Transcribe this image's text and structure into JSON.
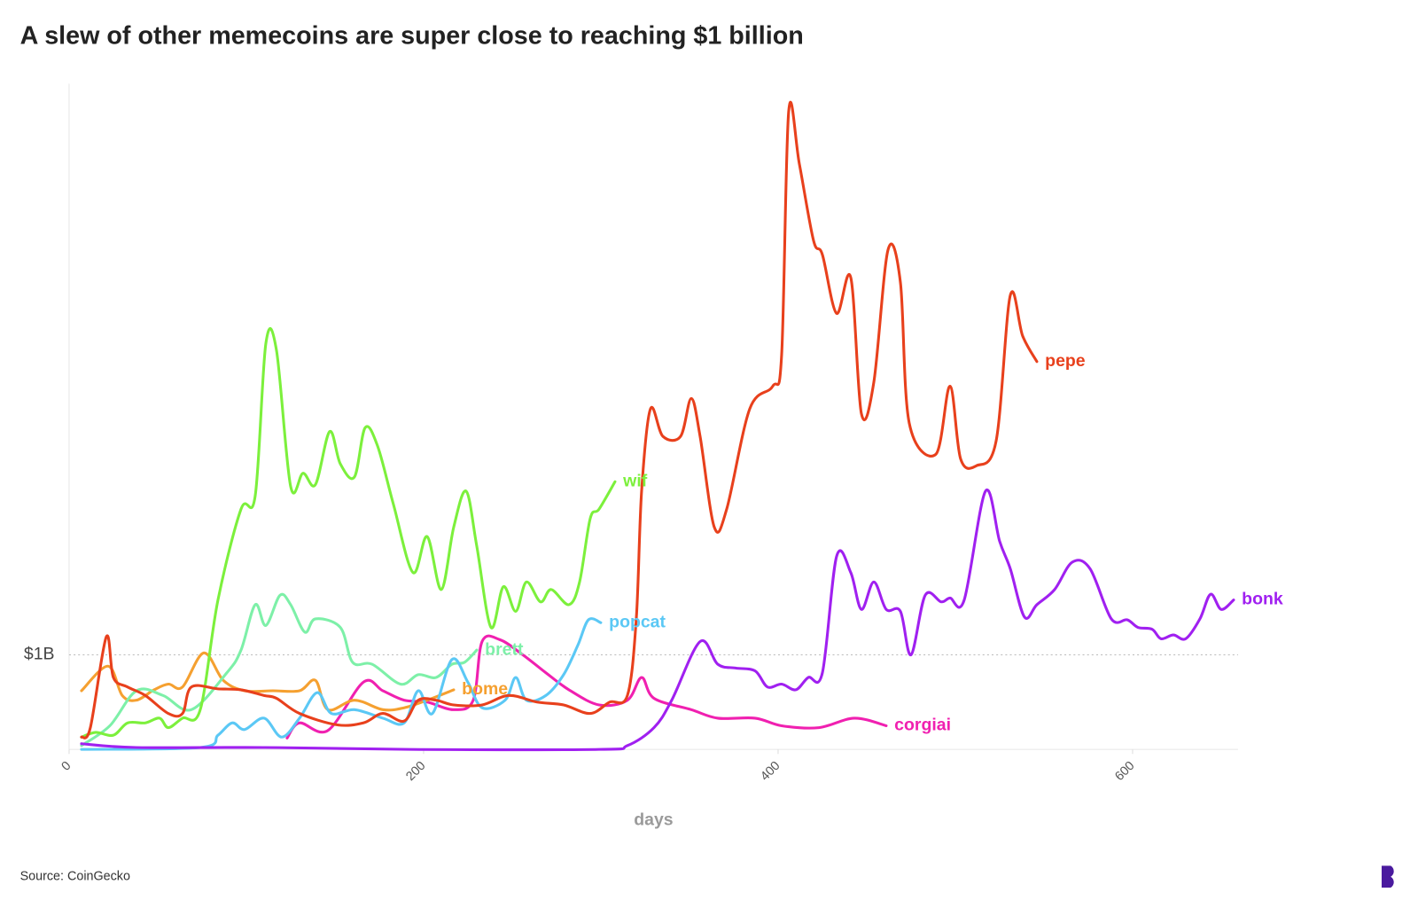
{
  "chart_data": {
    "type": "line",
    "title": "A slew of other memecoins are super close to reaching $1 billion",
    "x_label": "days",
    "source": "Source: CoinGecko",
    "xlim": [
      0,
      660
    ],
    "ylim": [
      0,
      7
    ],
    "xticks": [
      0,
      200,
      400,
      600
    ],
    "yticks": [
      {
        "value": 1,
        "label": "$1B"
      }
    ],
    "series": [
      {
        "name": "pepe",
        "color": "#e8401c",
        "x": [
          7,
          12,
          21,
          25,
          33,
          43,
          56,
          64,
          69,
          84,
          97,
          110,
          117,
          130,
          151,
          166,
          177,
          189,
          197,
          207,
          217,
          233,
          248,
          264,
          279,
          294,
          305,
          315,
          320,
          323,
          328,
          335,
          345,
          351,
          356,
          364,
          371,
          384,
          397,
          402,
          406,
          412,
          420,
          425,
          433,
          441,
          447,
          454,
          462,
          469,
          474,
          489,
          497,
          503,
          512,
          523,
          531,
          538,
          546
        ],
        "values": [
          0.13,
          0.23,
          1.19,
          0.76,
          0.66,
          0.57,
          0.38,
          0.38,
          0.66,
          0.64,
          0.63,
          0.57,
          0.54,
          0.38,
          0.26,
          0.28,
          0.38,
          0.3,
          0.52,
          0.52,
          0.47,
          0.47,
          0.57,
          0.5,
          0.47,
          0.38,
          0.5,
          0.57,
          1.38,
          2.73,
          3.6,
          3.31,
          3.31,
          3.71,
          3.31,
          2.35,
          2.54,
          3.6,
          3.84,
          4.17,
          6.75,
          6.19,
          5.38,
          5.23,
          4.61,
          4.99,
          3.55,
          3.88,
          5.28,
          4.94,
          3.45,
          3.12,
          3.84,
          3.07,
          3.0,
          3.26,
          4.8,
          4.37,
          4.1
        ]
      },
      {
        "name": "wif",
        "color": "#7cf03c",
        "x": [
          7,
          15,
          25,
          33,
          43,
          51,
          56,
          64,
          74,
          84,
          97,
          105,
          111,
          117,
          125,
          132,
          139,
          147,
          153,
          161,
          167,
          174,
          183,
          194,
          202,
          210,
          217,
          224,
          230,
          238,
          245,
          252,
          258,
          266,
          272,
          282,
          288,
          294,
          299,
          308
        ],
        "values": [
          0.13,
          0.18,
          0.15,
          0.28,
          0.28,
          0.33,
          0.23,
          0.33,
          0.42,
          1.58,
          2.54,
          2.68,
          4.29,
          4.22,
          2.78,
          2.92,
          2.8,
          3.36,
          3.02,
          2.88,
          3.4,
          3.21,
          2.59,
          1.87,
          2.25,
          1.69,
          2.35,
          2.73,
          2.15,
          1.29,
          1.72,
          1.46,
          1.77,
          1.56,
          1.69,
          1.53,
          1.77,
          2.44,
          2.54,
          2.83
        ]
      },
      {
        "name": "bonk",
        "color": "#a020f0",
        "x": [
          7,
          38,
          110,
          192,
          299,
          315,
          330,
          340,
          356,
          366,
          376,
          387,
          394,
          402,
          410,
          417,
          425,
          433,
          441,
          447,
          454,
          461,
          469,
          475,
          483,
          492,
          497,
          505,
          517,
          525,
          531,
          539,
          546,
          556,
          566,
          576,
          588,
          597,
          603,
          611,
          616,
          623,
          630,
          638,
          644,
          650,
          657
        ],
        "values": [
          0.06,
          0.02,
          0.02,
          0,
          0,
          0.04,
          0.23,
          0.52,
          1.14,
          0.9,
          0.86,
          0.83,
          0.66,
          0.69,
          0.63,
          0.76,
          0.81,
          2.04,
          1.87,
          1.48,
          1.77,
          1.48,
          1.46,
          1.0,
          1.63,
          1.56,
          1.6,
          1.58,
          2.73,
          2.2,
          1.91,
          1.4,
          1.53,
          1.69,
          1.98,
          1.91,
          1.38,
          1.37,
          1.29,
          1.27,
          1.17,
          1.21,
          1.17,
          1.38,
          1.64,
          1.48,
          1.58
        ]
      },
      {
        "name": "popcat",
        "color": "#5bc8f5",
        "x": [
          7,
          74,
          84,
          92,
          99,
          110,
          120,
          130,
          140,
          148,
          161,
          177,
          189,
          197,
          205,
          216,
          225,
          233,
          246,
          252,
          258,
          269,
          279,
          287,
          293,
          300
        ],
        "values": [
          0,
          0.02,
          0.15,
          0.28,
          0.21,
          0.33,
          0.13,
          0.33,
          0.6,
          0.38,
          0.42,
          0.33,
          0.28,
          0.62,
          0.38,
          0.95,
          0.71,
          0.44,
          0.52,
          0.76,
          0.52,
          0.57,
          0.79,
          1.1,
          1.37,
          1.34
        ]
      },
      {
        "name": "brett",
        "color": "#7df0a8",
        "x": [
          7,
          23,
          38,
          53,
          69,
          89,
          97,
          105,
          111,
          119,
          125,
          133,
          139,
          153,
          160,
          171,
          187,
          197,
          207,
          216,
          223,
          230
        ],
        "values": [
          0.04,
          0.25,
          0.62,
          0.57,
          0.42,
          0.81,
          1.05,
          1.53,
          1.31,
          1.63,
          1.53,
          1.24,
          1.38,
          1.29,
          0.92,
          0.9,
          0.69,
          0.79,
          0.76,
          0.9,
          0.92,
          1.05
        ]
      },
      {
        "name": "bome",
        "color": "#f5a030",
        "x": [
          7,
          22,
          30,
          38,
          48,
          56,
          64,
          76,
          87,
          99,
          115,
          130,
          139,
          146,
          161,
          177,
          189,
          202,
          217
        ],
        "values": [
          0.62,
          0.88,
          0.57,
          0.52,
          0.63,
          0.69,
          0.66,
          1.02,
          0.73,
          0.62,
          0.62,
          0.62,
          0.73,
          0.42,
          0.52,
          0.42,
          0.44,
          0.52,
          0.63
        ]
      },
      {
        "name": "corgiai",
        "color": "#f020b0",
        "x": [
          123,
          130,
          146,
          166,
          177,
          189,
          202,
          217,
          228,
          233,
          243,
          256,
          269,
          282,
          299,
          315,
          323,
          330,
          351,
          366,
          387,
          402,
          423,
          443,
          461
        ],
        "values": [
          0.12,
          0.28,
          0.2,
          0.71,
          0.62,
          0.52,
          0.5,
          0.42,
          0.52,
          1.14,
          1.16,
          1.0,
          0.81,
          0.63,
          0.47,
          0.52,
          0.76,
          0.54,
          0.42,
          0.33,
          0.33,
          0.25,
          0.23,
          0.33,
          0.25
        ]
      }
    ]
  }
}
